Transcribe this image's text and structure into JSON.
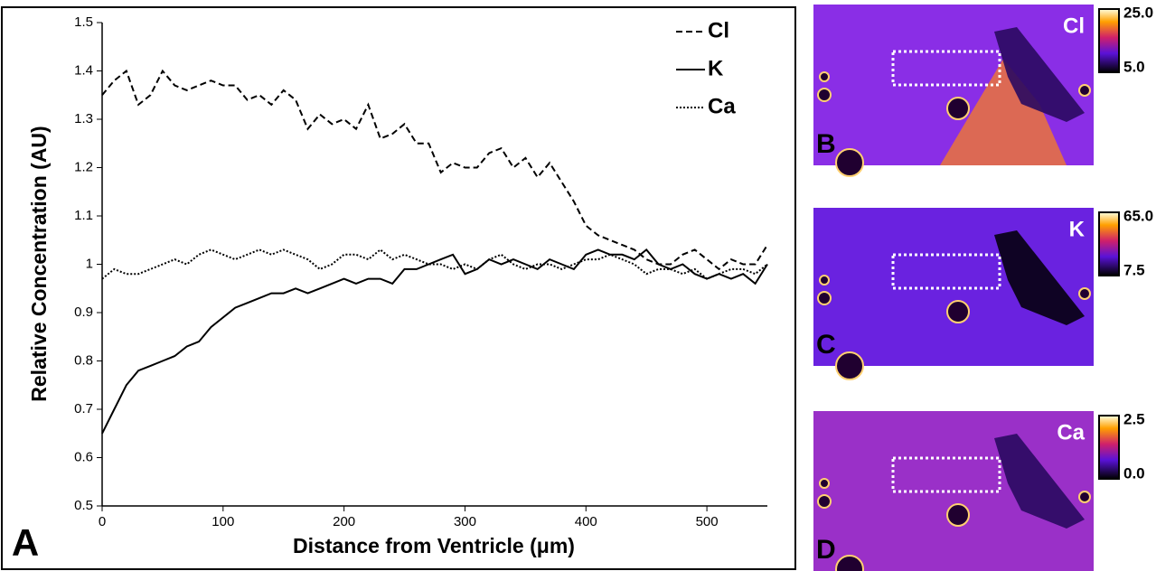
{
  "chart_data": {
    "type": "line",
    "panel_label": "A",
    "xlabel": "Distance from Ventricle (μm)",
    "ylabel": "Relative Concentration (AU)",
    "x": [
      0,
      10,
      20,
      30,
      40,
      50,
      60,
      70,
      80,
      90,
      100,
      110,
      120,
      130,
      140,
      150,
      160,
      170,
      180,
      190,
      200,
      210,
      220,
      230,
      240,
      250,
      260,
      270,
      280,
      290,
      300,
      310,
      320,
      330,
      340,
      350,
      360,
      370,
      380,
      390,
      400,
      410,
      420,
      430,
      440,
      450,
      460,
      470,
      480,
      490,
      500,
      510,
      520,
      530,
      540,
      550
    ],
    "series": [
      {
        "name": "Cl",
        "color": "#000000",
        "style": "dashed",
        "values": [
          1.35,
          1.38,
          1.4,
          1.33,
          1.35,
          1.4,
          1.37,
          1.36,
          1.37,
          1.38,
          1.37,
          1.37,
          1.34,
          1.35,
          1.33,
          1.36,
          1.34,
          1.28,
          1.31,
          1.29,
          1.3,
          1.28,
          1.33,
          1.26,
          1.27,
          1.29,
          1.25,
          1.25,
          1.19,
          1.21,
          1.2,
          1.2,
          1.23,
          1.24,
          1.2,
          1.22,
          1.18,
          1.21,
          1.17,
          1.13,
          1.08,
          1.06,
          1.05,
          1.04,
          1.03,
          1.01,
          1.0,
          1.0,
          1.02,
          1.03,
          1.01,
          0.99,
          1.01,
          1.0,
          1.0,
          1.04
        ]
      },
      {
        "name": "K",
        "color": "#000000",
        "style": "solid",
        "values": [
          0.65,
          0.7,
          0.75,
          0.78,
          0.79,
          0.8,
          0.81,
          0.83,
          0.84,
          0.87,
          0.89,
          0.91,
          0.92,
          0.93,
          0.94,
          0.94,
          0.95,
          0.94,
          0.95,
          0.96,
          0.97,
          0.96,
          0.97,
          0.97,
          0.96,
          0.99,
          0.99,
          1.0,
          1.01,
          1.02,
          0.98,
          0.99,
          1.01,
          1.0,
          1.01,
          1.0,
          0.99,
          1.01,
          1.0,
          0.99,
          1.02,
          1.03,
          1.02,
          1.02,
          1.01,
          1.03,
          1.0,
          0.99,
          1.0,
          0.98,
          0.97,
          0.98,
          0.97,
          0.98,
          0.96,
          1.0
        ]
      },
      {
        "name": "Ca",
        "color": "#000000",
        "style": "dotted",
        "values": [
          0.97,
          0.99,
          0.98,
          0.98,
          0.99,
          1.0,
          1.01,
          1.0,
          1.02,
          1.03,
          1.02,
          1.01,
          1.02,
          1.03,
          1.02,
          1.03,
          1.02,
          1.01,
          0.99,
          1.0,
          1.02,
          1.02,
          1.01,
          1.03,
          1.01,
          1.02,
          1.01,
          1.0,
          1.0,
          0.99,
          1.0,
          0.99,
          1.01,
          1.02,
          1.0,
          0.99,
          1.0,
          1.0,
          0.99,
          1.0,
          1.01,
          1.01,
          1.02,
          1.01,
          1.0,
          0.98,
          0.99,
          0.99,
          0.98,
          0.99,
          0.97,
          0.98,
          0.99,
          0.99,
          0.98,
          1.0
        ]
      }
    ],
    "xlim": [
      0,
      550
    ],
    "xticks": [
      0,
      100,
      200,
      300,
      400,
      500
    ],
    "ylim": [
      0.5,
      1.5
    ],
    "yticks": [
      0.5,
      0.6,
      0.7,
      0.8,
      0.9,
      1,
      1.1,
      1.2,
      1.3,
      1.4,
      1.5
    ],
    "legend": "upper right"
  },
  "panels": [
    {
      "letter": "B",
      "element": "Cl",
      "cbar_max": "25.0",
      "cbar_min": "5.0"
    },
    {
      "letter": "C",
      "element": "K",
      "cbar_max": "65.0",
      "cbar_min": "7.5"
    },
    {
      "letter": "D",
      "element": "Ca",
      "cbar_max": "2.5",
      "cbar_min": "0.0"
    }
  ]
}
